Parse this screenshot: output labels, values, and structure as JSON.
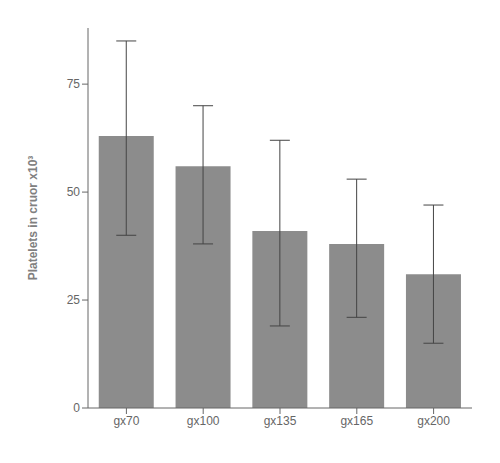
{
  "chart_data": {
    "type": "bar",
    "categories": [
      "gx70",
      "gx100",
      "gx135",
      "gx165",
      "gx200"
    ],
    "values": [
      63,
      56,
      41,
      38,
      31
    ],
    "errors_lower": [
      23,
      18,
      22,
      17,
      16
    ],
    "errors_upper": [
      22,
      14,
      21,
      15,
      16
    ],
    "color": "#8c8c8c",
    "ylabel": "Platelets in cruor x10³",
    "ylim": [
      0,
      88
    ],
    "yticks": [
      0,
      25,
      50,
      75
    ],
    "grid": false
  }
}
